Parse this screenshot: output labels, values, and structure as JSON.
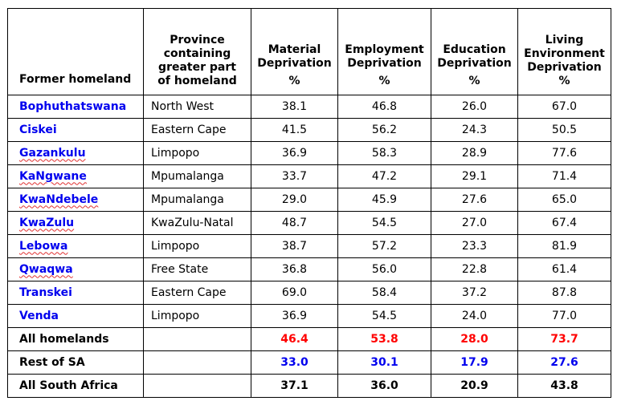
{
  "colors": {
    "homeland_name": "#0000ee",
    "all_homelands_values": "#ff0000",
    "rest_of_sa_values": "#0000ee",
    "border": "#000000"
  },
  "header": {
    "former_homeland": "Former homeland",
    "province": [
      "Province",
      "containing",
      "greater part",
      "of homeland"
    ],
    "material": [
      "Material",
      "Deprivation"
    ],
    "employment": [
      "Employment",
      "Deprivation"
    ],
    "education": [
      "Education",
      "Deprivation"
    ],
    "living": [
      "Living",
      "Environment",
      "Deprivation"
    ],
    "pct": "%"
  },
  "rows": [
    {
      "homeland": "Bophuthatswana",
      "province": "North West",
      "material": "38.1",
      "employment": "46.8",
      "education": "26.0",
      "living": "67.0"
    },
    {
      "homeland": "Ciskei",
      "province": "Eastern Cape",
      "material": "41.5",
      "employment": "56.2",
      "education": "24.3",
      "living": "50.5"
    },
    {
      "homeland": "Gazankulu",
      "province": "Limpopo",
      "material": "36.9",
      "employment": "58.3",
      "education": "28.9",
      "living": "77.6"
    },
    {
      "homeland": "KaNgwane",
      "province": "Mpumalanga",
      "material": "33.7",
      "employment": "47.2",
      "education": "29.1",
      "living": "71.4"
    },
    {
      "homeland": "KwaNdebele",
      "province": "Mpumalanga",
      "material": "29.0",
      "employment": "45.9",
      "education": "27.6",
      "living": "65.0"
    },
    {
      "homeland": "KwaZulu",
      "province": "KwaZulu-Natal",
      "material": "48.7",
      "employment": "54.5",
      "education": "27.0",
      "living": "67.4"
    },
    {
      "homeland": "Lebowa",
      "province": "Limpopo",
      "material": "38.7",
      "employment": "57.2",
      "education": "23.3",
      "living": "81.9"
    },
    {
      "homeland": "Qwaqwa",
      "province": "Free State",
      "material": "36.8",
      "employment": "56.0",
      "education": "22.8",
      "living": "61.4"
    },
    {
      "homeland": "Transkei",
      "province": "Eastern Cape",
      "material": "69.0",
      "employment": "58.4",
      "education": "37.2",
      "living": "87.8"
    },
    {
      "homeland": "Venda",
      "province": "Limpopo",
      "material": "36.9",
      "employment": "54.5",
      "education": "24.0",
      "living": "77.0"
    }
  ],
  "summary": [
    {
      "label": "All homelands",
      "province": "",
      "material": "46.4",
      "employment": "53.8",
      "education": "28.0",
      "living": "73.7"
    },
    {
      "label": "Rest of SA",
      "province": "",
      "material": "33.0",
      "employment": "30.1",
      "education": "17.9",
      "living": "27.6"
    },
    {
      "label": "All South Africa",
      "province": "",
      "material": "37.1",
      "employment": "36.0",
      "education": "20.9",
      "living": "43.8"
    }
  ]
}
